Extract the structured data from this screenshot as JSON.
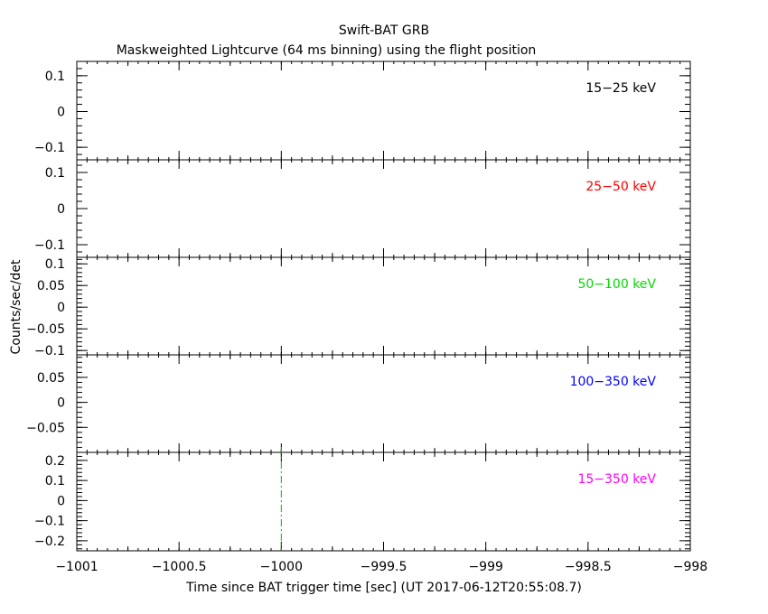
{
  "title": "Swift-BAT GRB",
  "subtitle": "Maskweighted Lightcurve (64 ms binning) using the flight position",
  "ylabel": "Counts/sec/det",
  "xlabel": "Time since BAT trigger time [sec] (UT 2017-06-12T20:55:08.7)",
  "chart_data": {
    "type": "line",
    "title": "Swift-BAT GRB",
    "subtitle": "Maskweighted Lightcurve (64 ms binning) using the flight position",
    "xlabel": "Time since BAT trigger time [sec] (UT 2017-06-12T20:55:08.7)",
    "ylabel": "Counts/sec/det",
    "xlim": [
      -1001,
      -998
    ],
    "x_ticks": [
      -1001,
      -1000.5,
      -1000,
      -999.5,
      -999,
      -998.5,
      -998
    ],
    "x_tick_labels": [
      "−1001",
      "−1000.5",
      "−1000",
      "−999.5",
      "−999",
      "−998.5",
      "−998"
    ],
    "trigger_marker": {
      "x": -1000,
      "color": "#00bb00"
    },
    "panels": [
      {
        "band": "15−25 keV",
        "color": "#000000",
        "ylim": [
          -0.135,
          0.14
        ],
        "y_ticks": [
          -0.1,
          0,
          0.1
        ],
        "y_tick_labels": [
          "−0.1",
          "0",
          "0.1"
        ],
        "series": []
      },
      {
        "band": "25−50 keV",
        "color": "#ff0000",
        "ylim": [
          -0.135,
          0.135
        ],
        "y_ticks": [
          -0.1,
          0,
          0.1
        ],
        "y_tick_labels": [
          "−0.1",
          "0",
          "0.1"
        ],
        "series": []
      },
      {
        "band": "50−100 keV",
        "color": "#00dd00",
        "ylim": [
          -0.11,
          0.115
        ],
        "y_ticks": [
          -0.1,
          -0.05,
          0,
          0.05,
          0.1
        ],
        "y_tick_labels": [
          "−0.1",
          "−0.05",
          "0",
          "0.05",
          "0.1"
        ],
        "series": []
      },
      {
        "band": "100−350 keV",
        "color": "#0000ff",
        "ylim": [
          -0.1,
          0.095
        ],
        "y_ticks": [
          -0.05,
          0,
          0.05
        ],
        "y_tick_labels": [
          "−0.05",
          "0",
          "0.05"
        ],
        "series": []
      },
      {
        "band": "15−350 keV",
        "color": "#ff00ff",
        "ylim": [
          -0.25,
          0.24
        ],
        "y_ticks": [
          -0.2,
          -0.1,
          0,
          0.1,
          0.2
        ],
        "y_tick_labels": [
          "−0.2",
          "−0.1",
          "0",
          "0.1",
          "0.2"
        ],
        "series": []
      }
    ]
  }
}
